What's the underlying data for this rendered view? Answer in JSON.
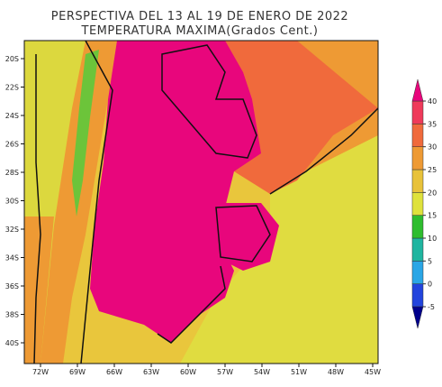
{
  "header": {
    "title": "PERSPECTIVA DEL 13 AL 19 DE ENERO DE 2022",
    "subtitle": "TEMPERATURA MAXIMA(Grados Cent.)"
  },
  "map": {
    "longitudes": [
      "72W",
      "69W",
      "66W",
      "63W",
      "60W",
      "57W",
      "54W",
      "51W",
      "48W",
      "45W"
    ],
    "latitudes": [
      "20S",
      "22S",
      "24S",
      "26S",
      "28S",
      "30S",
      "32S",
      "34S",
      "36S",
      "38S",
      "40S"
    ]
  },
  "colorbar": {
    "ticks": [
      -5,
      0,
      5,
      10,
      15,
      20,
      25,
      30,
      35,
      40
    ],
    "colors": [
      "#00008c",
      "#2244dd",
      "#2aa6e6",
      "#1fb5a0",
      "#2ebd2e",
      "#dfe23c",
      "#e8c23a",
      "#ee9a34",
      "#f06a3c",
      "#ef3a5a",
      "#e8067c"
    ]
  }
}
